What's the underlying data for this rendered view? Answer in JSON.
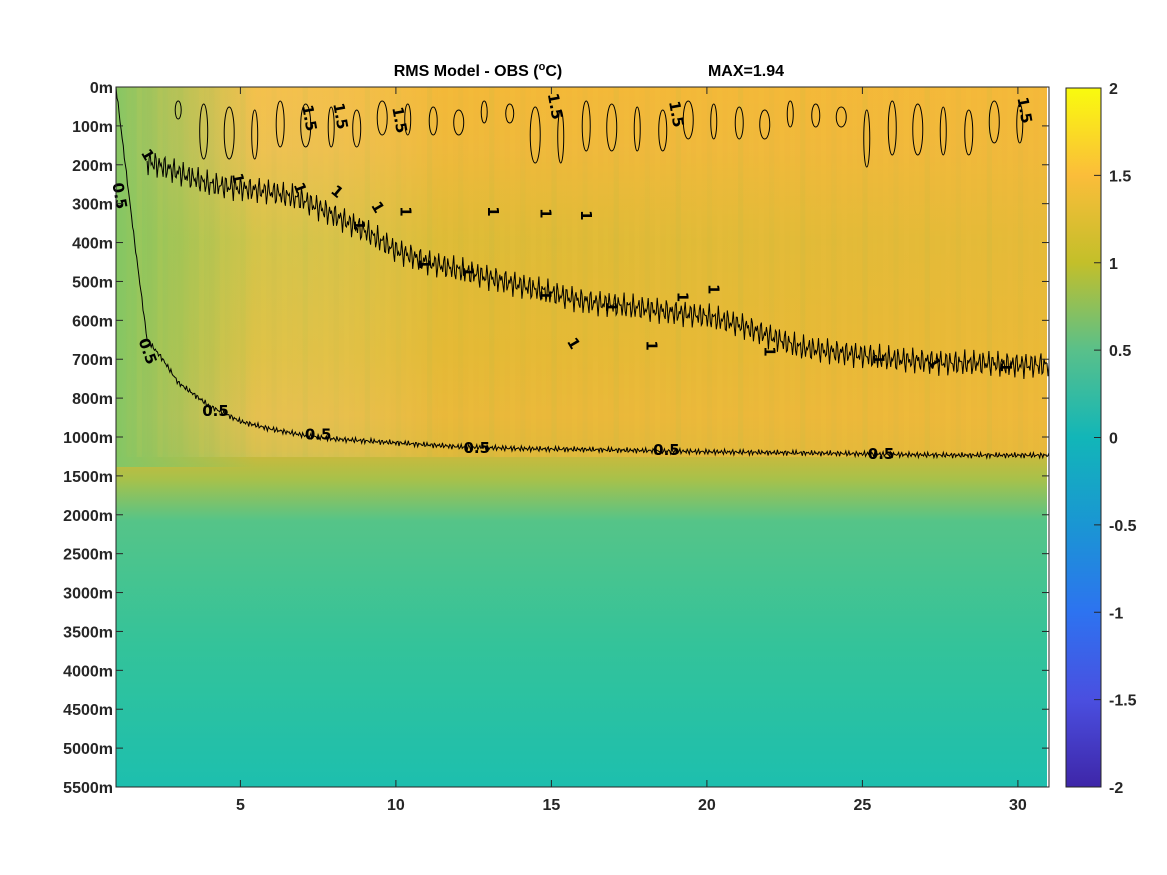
{
  "chart_data": {
    "type": "heatmap",
    "title": "RMS Model - OBS (",
    "title_unit_super": "o",
    "title_unit_end": "C)",
    "max_annotation": "MAX=1.94",
    "x_ticks": [
      5,
      10,
      15,
      20,
      25,
      30
    ],
    "x_range": [
      1,
      31
    ],
    "y_tick_labels": [
      "0m",
      "100m",
      "200m",
      "300m",
      "400m",
      "500m",
      "600m",
      "700m",
      "800m",
      "1000m",
      "1500m",
      "2000m",
      "2500m",
      "3000m",
      "3500m",
      "4000m",
      "4500m",
      "5000m",
      "5500m"
    ],
    "colorbar": {
      "range": [
        -2,
        2
      ],
      "tick_values": [
        2,
        1.5,
        1,
        0.5,
        0,
        -0.5,
        -1,
        -1.5,
        -2
      ],
      "tick_labels": [
        "2",
        "1.5",
        "1",
        "0.5",
        "0",
        "-0.5",
        "-1",
        "-1.5",
        "-2"
      ]
    },
    "contour_levels": [
      0.5,
      1,
      1.5
    ],
    "contours": {
      "level_0_5": {
        "x": [
          1.0,
          1.3,
          1.6,
          2.0,
          2.5,
          3.0,
          4.0,
          5.0,
          6.0,
          7.0,
          8.0,
          10.0,
          12.0,
          14.0,
          16.0,
          18.0,
          20.0,
          22.0,
          24.0,
          26.0,
          28.0,
          30.0,
          31.0
        ],
        "y_level": [
          0.0,
          2.0,
          4.0,
          6.5,
          7.0,
          7.6,
          8.2,
          8.6,
          8.8,
          8.95,
          9.05,
          9.15,
          9.25,
          9.3,
          9.32,
          9.35,
          9.38,
          9.4,
          9.42,
          9.45,
          9.47,
          9.47,
          9.47
        ]
      },
      "level_1": {
        "x": [
          2.0,
          3.0,
          4.0,
          5.0,
          6.0,
          7.0,
          8.0,
          9.0,
          10.0,
          11.0,
          12.0,
          13.0,
          14.0,
          15.0,
          16.0,
          17.0,
          18.0,
          19.0,
          20.0,
          21.0,
          22.0,
          23.0,
          24.0,
          25.0,
          26.0,
          27.0,
          28.0,
          29.0,
          30.0,
          31.0
        ],
        "y_level": [
          1.9,
          2.2,
          2.5,
          2.6,
          2.7,
          2.9,
          3.3,
          3.7,
          4.2,
          4.5,
          4.7,
          4.9,
          5.1,
          5.3,
          5.5,
          5.6,
          5.7,
          5.8,
          5.9,
          6.1,
          6.4,
          6.7,
          6.8,
          6.9,
          7.0,
          7.05,
          7.1,
          7.1,
          7.15,
          7.15
        ]
      },
      "level_1_5_present": true
    },
    "contour_labels": [
      {
        "text": "0.5",
        "x": 1.1,
        "y_level": 2.8,
        "angle": 80
      },
      {
        "text": "0.5",
        "x": 2.0,
        "y_level": 6.8,
        "angle": 70
      },
      {
        "text": "0.5",
        "x": 4.2,
        "y_level": 8.35,
        "angle": 0
      },
      {
        "text": "0.5",
        "x": 7.5,
        "y_level": 8.95,
        "angle": 0
      },
      {
        "text": "0.5",
        "x": 12.6,
        "y_level": 9.3,
        "angle": 0
      },
      {
        "text": "0.5",
        "x": 18.7,
        "y_level": 9.35,
        "angle": 0
      },
      {
        "text": "0.5",
        "x": 25.6,
        "y_level": 9.45,
        "angle": 0
      },
      {
        "text": "1",
        "x": 2.0,
        "y_level": 1.75,
        "angle": 60
      },
      {
        "text": "1",
        "x": 4.9,
        "y_level": 2.35,
        "angle": 80
      },
      {
        "text": "1",
        "x": 6.9,
        "y_level": 2.6,
        "angle": 70
      },
      {
        "text": "1",
        "x": 8.1,
        "y_level": 2.7,
        "angle": 40
      },
      {
        "text": "1",
        "x": 9.4,
        "y_level": 3.1,
        "angle": 60
      },
      {
        "text": "1",
        "x": 10.3,
        "y_level": 3.2,
        "angle": 90
      },
      {
        "text": "1",
        "x": 13.1,
        "y_level": 3.2,
        "angle": 90
      },
      {
        "text": "1",
        "x": 14.8,
        "y_level": 3.25,
        "angle": 90
      },
      {
        "text": "1",
        "x": 16.1,
        "y_level": 3.3,
        "angle": 90
      },
      {
        "text": "1",
        "x": 8.8,
        "y_level": 3.55,
        "angle": 90
      },
      {
        "text": "1",
        "x": 10.9,
        "y_level": 4.55,
        "angle": 90
      },
      {
        "text": "1",
        "x": 12.3,
        "y_level": 4.75,
        "angle": 90
      },
      {
        "text": "1",
        "x": 14.8,
        "y_level": 5.35,
        "angle": 90
      },
      {
        "text": "1",
        "x": 16.9,
        "y_level": 5.65,
        "angle": 90
      },
      {
        "text": "1",
        "x": 19.2,
        "y_level": 5.4,
        "angle": 90
      },
      {
        "text": "1",
        "x": 20.2,
        "y_level": 5.2,
        "angle": 90
      },
      {
        "text": "1",
        "x": 15.7,
        "y_level": 6.6,
        "angle": 60
      },
      {
        "text": "1",
        "x": 18.2,
        "y_level": 6.65,
        "angle": 90
      },
      {
        "text": "1",
        "x": 22.0,
        "y_level": 6.8,
        "angle": 90
      },
      {
        "text": "1",
        "x": 25.5,
        "y_level": 7.0,
        "angle": 90
      },
      {
        "text": "1",
        "x": 27.3,
        "y_level": 7.1,
        "angle": 60
      },
      {
        "text": "1",
        "x": 29.6,
        "y_level": 7.2,
        "angle": 90
      },
      {
        "text": "1.5",
        "x": 7.2,
        "y_level": 0.8,
        "angle": 80
      },
      {
        "text": "1.5",
        "x": 8.2,
        "y_level": 0.75,
        "angle": 80
      },
      {
        "text": "1.5",
        "x": 10.1,
        "y_level": 0.85,
        "angle": 80
      },
      {
        "text": "1.5",
        "x": 15.1,
        "y_level": 0.5,
        "angle": 80
      },
      {
        "text": "1.5",
        "x": 19.0,
        "y_level": 0.7,
        "angle": 80
      },
      {
        "text": "1.5",
        "x": 30.2,
        "y_level": 0.6,
        "angle": 80
      }
    ],
    "grid": false
  }
}
